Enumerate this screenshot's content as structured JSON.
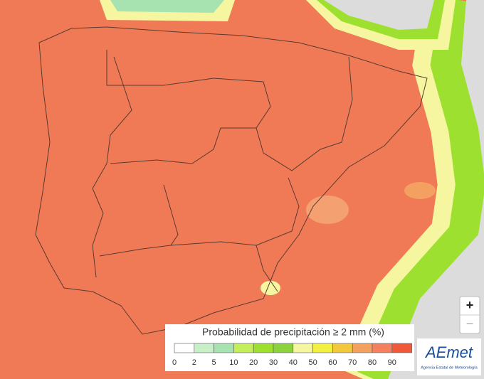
{
  "legend": {
    "title": "Probabilidad de precipitación ≥ 2 mm (%)",
    "items": [
      {
        "label": 0,
        "color": "#ffffff"
      },
      {
        "label": 2,
        "color": "#c8f0c8"
      },
      {
        "label": 5,
        "color": "#a6e3b0"
      },
      {
        "label": 10,
        "color": "#c4ee5a"
      },
      {
        "label": 20,
        "color": "#9ee030"
      },
      {
        "label": 30,
        "color": "#8cd23c"
      },
      {
        "label": 40,
        "color": "#f6f6a0"
      },
      {
        "label": 50,
        "color": "#f2f040"
      },
      {
        "label": 60,
        "color": "#f4c83c"
      },
      {
        "label": 70,
        "color": "#f4a060"
      },
      {
        "label": 80,
        "color": "#f48060"
      },
      {
        "label": 90,
        "color": "#f05a3a"
      }
    ]
  },
  "logo": {
    "name": "AEmet",
    "subtitle": "Agencia Estatal de Meteorología"
  },
  "zoom": {
    "in": "+",
    "out": "−"
  }
}
